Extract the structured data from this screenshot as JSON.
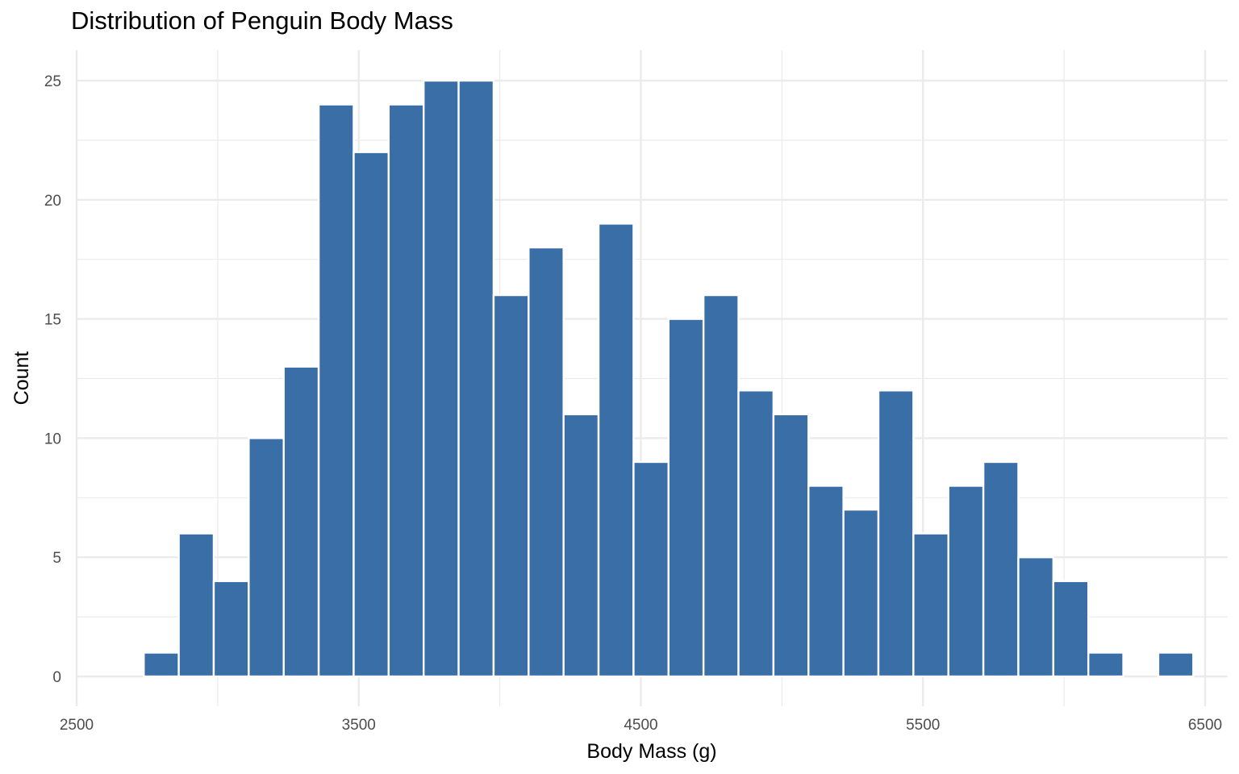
{
  "chart_data": {
    "type": "bar",
    "title": "Distribution of Penguin Body Mass",
    "xlabel": "Body Mass (g)",
    "ylabel": "Count",
    "xlim": [
      2500,
      6500
    ],
    "ylim": [
      0,
      25
    ],
    "x_ticks": [
      2500,
      3500,
      4500,
      5500,
      6500
    ],
    "y_ticks": [
      0,
      5,
      10,
      15,
      20,
      25
    ],
    "grid": true,
    "bin_width": 124,
    "bins": [
      {
        "center": 2800,
        "count": 1
      },
      {
        "center": 2924,
        "count": 6
      },
      {
        "center": 3048,
        "count": 4
      },
      {
        "center": 3172,
        "count": 10
      },
      {
        "center": 3296,
        "count": 13
      },
      {
        "center": 3420,
        "count": 24
      },
      {
        "center": 3544,
        "count": 22
      },
      {
        "center": 3668,
        "count": 24
      },
      {
        "center": 3792,
        "count": 25
      },
      {
        "center": 3916,
        "count": 25
      },
      {
        "center": 4040,
        "count": 16
      },
      {
        "center": 4164,
        "count": 18
      },
      {
        "center": 4288,
        "count": 11
      },
      {
        "center": 4412,
        "count": 19
      },
      {
        "center": 4536,
        "count": 9
      },
      {
        "center": 4660,
        "count": 15
      },
      {
        "center": 4784,
        "count": 16
      },
      {
        "center": 4908,
        "count": 12
      },
      {
        "center": 5032,
        "count": 11
      },
      {
        "center": 5156,
        "count": 8
      },
      {
        "center": 5280,
        "count": 7
      },
      {
        "center": 5404,
        "count": 12
      },
      {
        "center": 5528,
        "count": 6
      },
      {
        "center": 5652,
        "count": 8
      },
      {
        "center": 5776,
        "count": 9
      },
      {
        "center": 5900,
        "count": 5
      },
      {
        "center": 6024,
        "count": 4
      },
      {
        "center": 6148,
        "count": 1
      },
      {
        "center": 6272,
        "count": 0
      },
      {
        "center": 6396,
        "count": 1
      }
    ],
    "bar_color": "#3A6EA7",
    "bar_edge_color": "#FFFFFF",
    "grid_color": "#EBEBEB"
  }
}
